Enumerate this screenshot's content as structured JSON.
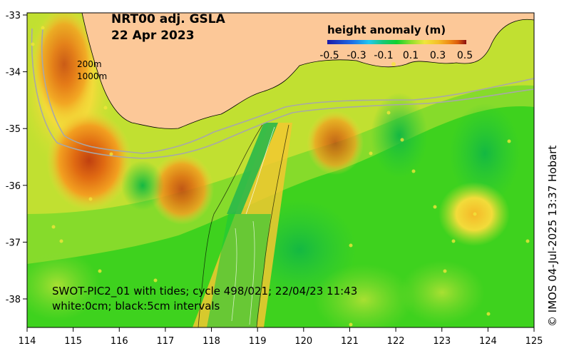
{
  "title": {
    "line1": "NRT00 adj. GSLA",
    "line2": "22 Apr 2023"
  },
  "colorbar": {
    "title": "height anomaly (m)",
    "ticks": [
      "-0.5",
      "-0.3",
      "-0.1",
      "0.1",
      "0.3",
      "0.5"
    ],
    "colors": [
      "#1a1aa8",
      "#1e6ee6",
      "#1fc8f0",
      "#18c878",
      "#12d22c",
      "#8ede2c",
      "#f0e63c",
      "#f5be28",
      "#ef8a14",
      "#db5a0c",
      "#b82a10",
      "#8a1010"
    ]
  },
  "isobath_labels": {
    "shallow": "200m",
    "deep": "1000m"
  },
  "swath_caption": {
    "line1": "SWOT-PIC2_01 with tides; cycle 498/021; 22/04/23 11:43",
    "line2": "white:0cm; black:5cm intervals"
  },
  "credit": "© IMOS 04-Jul-2025 13:37 Hobart",
  "axes": {
    "x_ticks": [
      "114",
      "115",
      "116",
      "117",
      "118",
      "119",
      "120",
      "121",
      "122",
      "123",
      "124",
      "125"
    ],
    "y_ticks": [
      "-33",
      "-34",
      "-35",
      "-36",
      "-37",
      "-38"
    ]
  },
  "colors": {
    "land": "#fcc898",
    "ocean_base": "#3ed21e",
    "isobath": "#a8a8a8"
  }
}
